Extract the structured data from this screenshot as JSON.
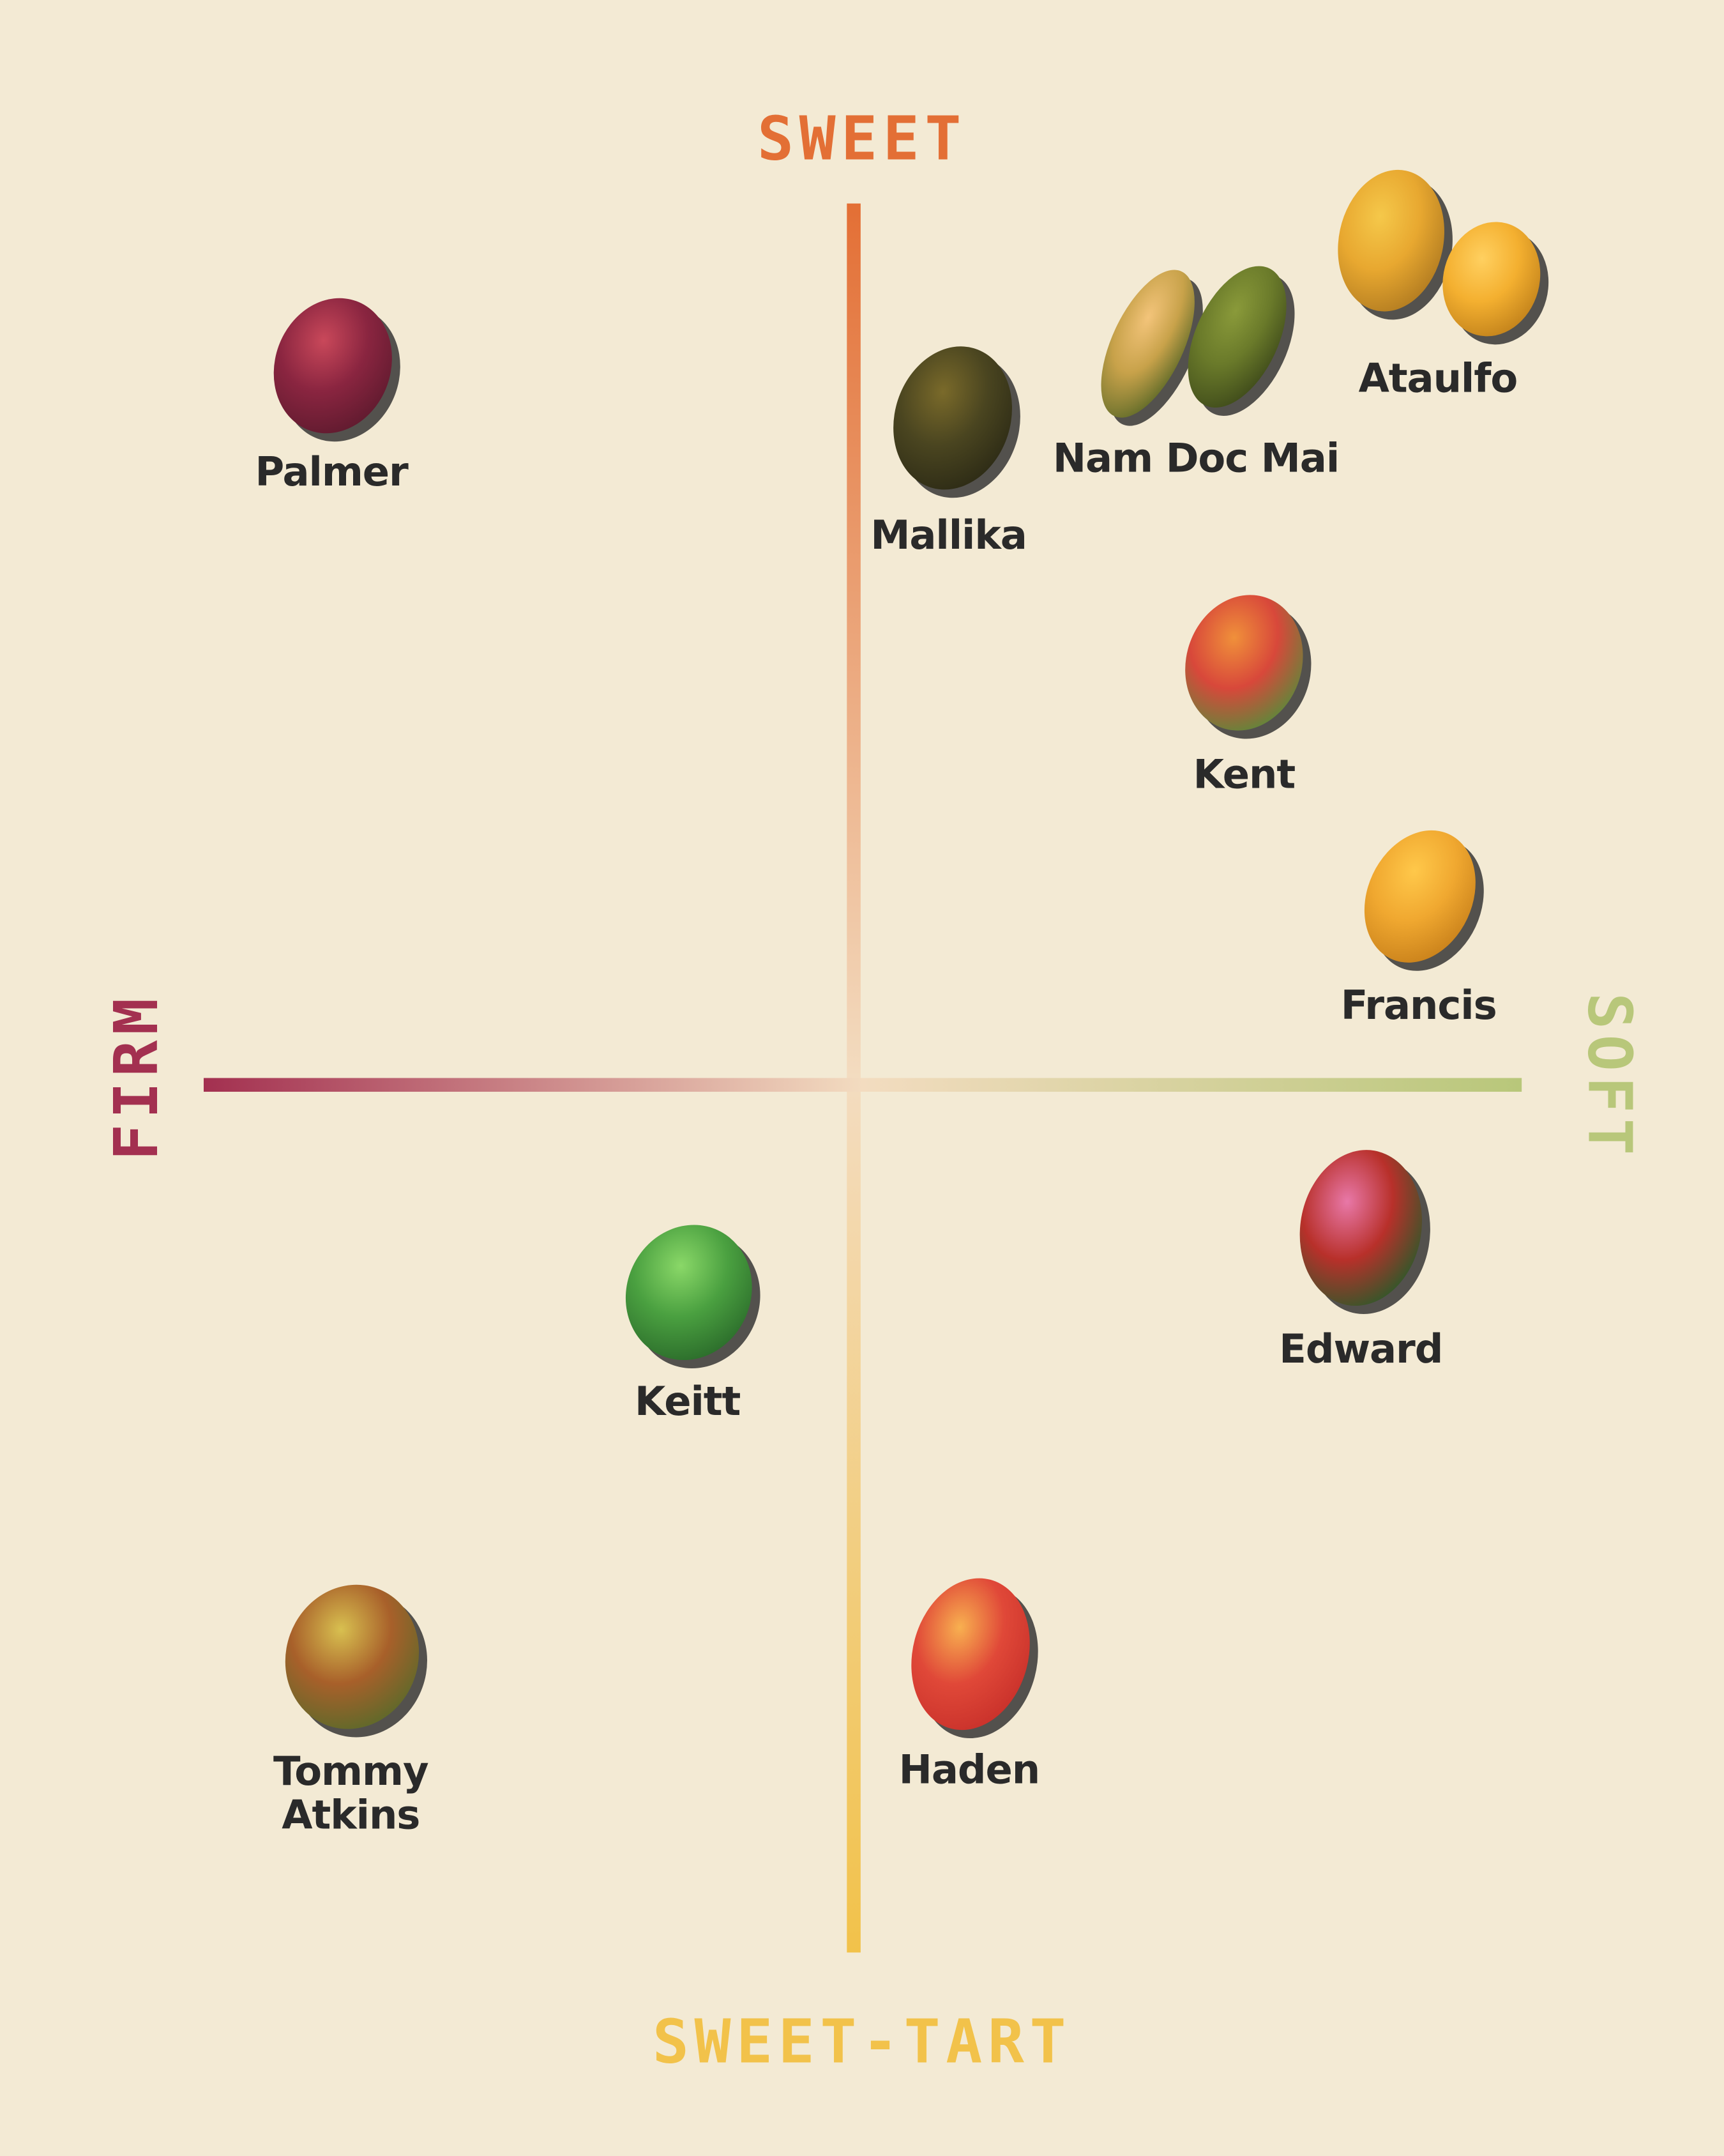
{
  "axes": {
    "top": "SWEET",
    "bottom": "SWEET-TART",
    "left": "FIRM",
    "right": "SOFT"
  },
  "mangoes": [
    {
      "lines": [
        "Palmer"
      ]
    },
    {
      "lines": [
        "Mallika"
      ]
    },
    {
      "lines": [
        "Nam Doc Mai"
      ]
    },
    {
      "lines": [
        "Ataulfo"
      ]
    },
    {
      "lines": [
        "Kent"
      ]
    },
    {
      "lines": [
        "Francis"
      ]
    },
    {
      "lines": [
        "Edward"
      ]
    },
    {
      "lines": [
        "Keitt"
      ]
    },
    {
      "lines": [
        "Tommy",
        "Atkins"
      ]
    },
    {
      "lines": [
        "Haden"
      ]
    }
  ]
}
